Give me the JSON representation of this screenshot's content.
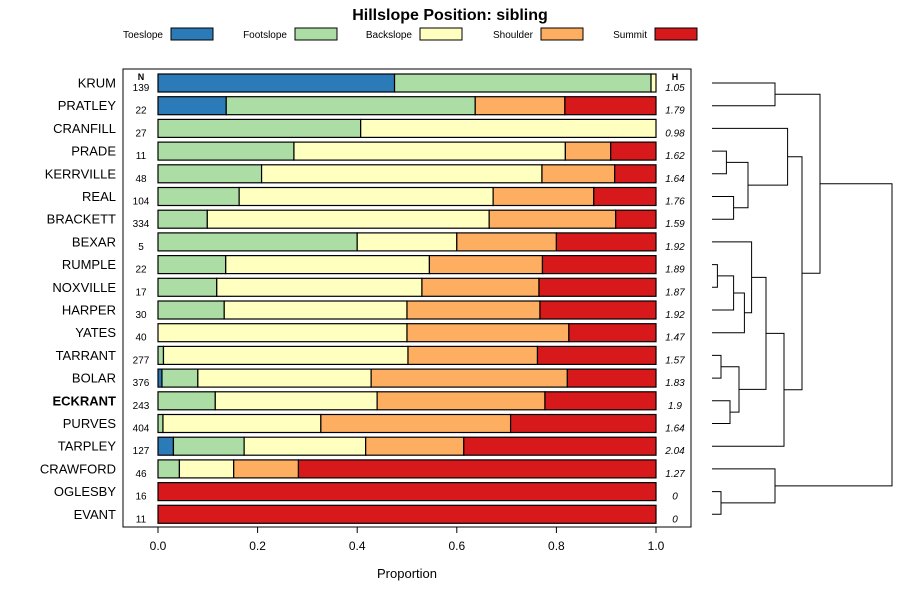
{
  "chart_data": {
    "type": "bar",
    "title": "Hillslope Position: sibling",
    "xlabel": "Proportion",
    "ylabel": "",
    "xlim": [
      0,
      1
    ],
    "xticks": [
      "0.0",
      "0.2",
      "0.4",
      "0.6",
      "0.8",
      "1.0"
    ],
    "n_header": "N",
    "h_header": "H",
    "legend": [
      {
        "name": "Toeslope",
        "color": "#2b7bb9"
      },
      {
        "name": "Footslope",
        "color": "#abdda4"
      },
      {
        "name": "Backslope",
        "color": "#ffffbf"
      },
      {
        "name": "Shoulder",
        "color": "#fdae61"
      },
      {
        "name": "Summit",
        "color": "#d7191c"
      }
    ],
    "rows": [
      {
        "label": "KRUM",
        "n": "139",
        "h": "1.05",
        "bold": false,
        "values": [
          0.475,
          0.515,
          0.01,
          0.0,
          0.0
        ]
      },
      {
        "label": "PRATLEY",
        "n": "22",
        "h": "1.79",
        "bold": false,
        "values": [
          0.137,
          0.5,
          0.0,
          0.18,
          0.183
        ]
      },
      {
        "label": "CRANFILL",
        "n": "27",
        "h": "0.98",
        "bold": false,
        "values": [
          0.0,
          0.407,
          0.593,
          0.0,
          0.0
        ]
      },
      {
        "label": "PRADE",
        "n": "11",
        "h": "1.62",
        "bold": false,
        "values": [
          0.0,
          0.273,
          0.545,
          0.091,
          0.091
        ]
      },
      {
        "label": "KERRVILLE",
        "n": "48",
        "h": "1.64",
        "bold": false,
        "values": [
          0.0,
          0.208,
          0.563,
          0.146,
          0.083
        ]
      },
      {
        "label": "REAL",
        "n": "104",
        "h": "1.76",
        "bold": false,
        "values": [
          0.0,
          0.163,
          0.51,
          0.202,
          0.125
        ]
      },
      {
        "label": "BRACKETT",
        "n": "334",
        "h": "1.59",
        "bold": false,
        "values": [
          0.0,
          0.099,
          0.566,
          0.254,
          0.081
        ]
      },
      {
        "label": "BEXAR",
        "n": "5",
        "h": "1.92",
        "bold": false,
        "values": [
          0.0,
          0.4,
          0.2,
          0.2,
          0.2
        ]
      },
      {
        "label": "RUMPLE",
        "n": "22",
        "h": "1.89",
        "bold": false,
        "values": [
          0.0,
          0.136,
          0.409,
          0.227,
          0.228
        ]
      },
      {
        "label": "NOXVILLE",
        "n": "17",
        "h": "1.87",
        "bold": false,
        "values": [
          0.0,
          0.118,
          0.412,
          0.235,
          0.235
        ]
      },
      {
        "label": "HARPER",
        "n": "30",
        "h": "1.92",
        "bold": false,
        "values": [
          0.0,
          0.133,
          0.367,
          0.267,
          0.233
        ]
      },
      {
        "label": "YATES",
        "n": "40",
        "h": "1.47",
        "bold": false,
        "values": [
          0.0,
          0.0,
          0.5,
          0.325,
          0.175
        ]
      },
      {
        "label": "TARRANT",
        "n": "277",
        "h": "1.57",
        "bold": false,
        "values": [
          0.0,
          0.011,
          0.491,
          0.26,
          0.238
        ]
      },
      {
        "label": "BOLAR",
        "n": "376",
        "h": "1.83",
        "bold": false,
        "values": [
          0.008,
          0.072,
          0.348,
          0.394,
          0.178
        ]
      },
      {
        "label": "ECKRANT",
        "n": "243",
        "h": "1.9",
        "bold": true,
        "values": [
          0.0,
          0.115,
          0.325,
          0.337,
          0.223
        ]
      },
      {
        "label": "PURVES",
        "n": "404",
        "h": "1.64",
        "bold": false,
        "values": [
          0.0,
          0.01,
          0.317,
          0.381,
          0.292
        ]
      },
      {
        "label": "TARPLEY",
        "n": "127",
        "h": "2.04",
        "bold": false,
        "values": [
          0.031,
          0.142,
          0.244,
          0.197,
          0.386
        ]
      },
      {
        "label": "CRAWFORD",
        "n": "46",
        "h": "1.27",
        "bold": false,
        "values": [
          0.0,
          0.043,
          0.109,
          0.13,
          0.718
        ]
      },
      {
        "label": "OGLESBY",
        "n": "16",
        "h": "0",
        "bold": false,
        "values": [
          0.0,
          0.0,
          0.0,
          0.0,
          1.0
        ]
      },
      {
        "label": "EVANT",
        "n": "11",
        "h": "0",
        "bold": false,
        "values": [
          0.0,
          0.0,
          0.0,
          0.0,
          1.0
        ]
      }
    ],
    "dendrogram": [
      {
        "left": 0,
        "right": 1,
        "height": 0.35
      },
      {
        "left": 3,
        "right": 4,
        "height": 0.08
      },
      {
        "left": 5,
        "right": 6,
        "height": 0.12
      },
      {
        "left": 8,
        "right": 9,
        "height": 0.03
      },
      {
        "left": 12,
        "right": 13,
        "height": 0.05
      },
      {
        "left": 14,
        "right": 15,
        "height": 0.1
      },
      {
        "left": 18,
        "right": 19,
        "height": 0.05
      },
      {
        "left": "n1",
        "right": "n2",
        "height": 0.2
      },
      {
        "left": 2,
        "right": "n7",
        "height": 0.42
      },
      {
        "left": "n3",
        "right": 10,
        "height": 0.12
      },
      {
        "left": "n9",
        "right": 11,
        "height": 0.18
      },
      {
        "left": 7,
        "right": "n10",
        "height": 0.22
      },
      {
        "left": "n4",
        "right": "n5",
        "height": 0.15
      },
      {
        "left": "n11",
        "right": "n12",
        "height": 0.3
      },
      {
        "left": "n13",
        "right": 16,
        "height": 0.4
      },
      {
        "left": "n8",
        "right": "n14",
        "height": 0.5
      },
      {
        "left": "n0",
        "right": "n15",
        "height": 0.6
      },
      {
        "left": 17,
        "right": "n6",
        "height": 0.35
      },
      {
        "left": "n16",
        "right": "n17",
        "height": 1.0
      }
    ]
  }
}
